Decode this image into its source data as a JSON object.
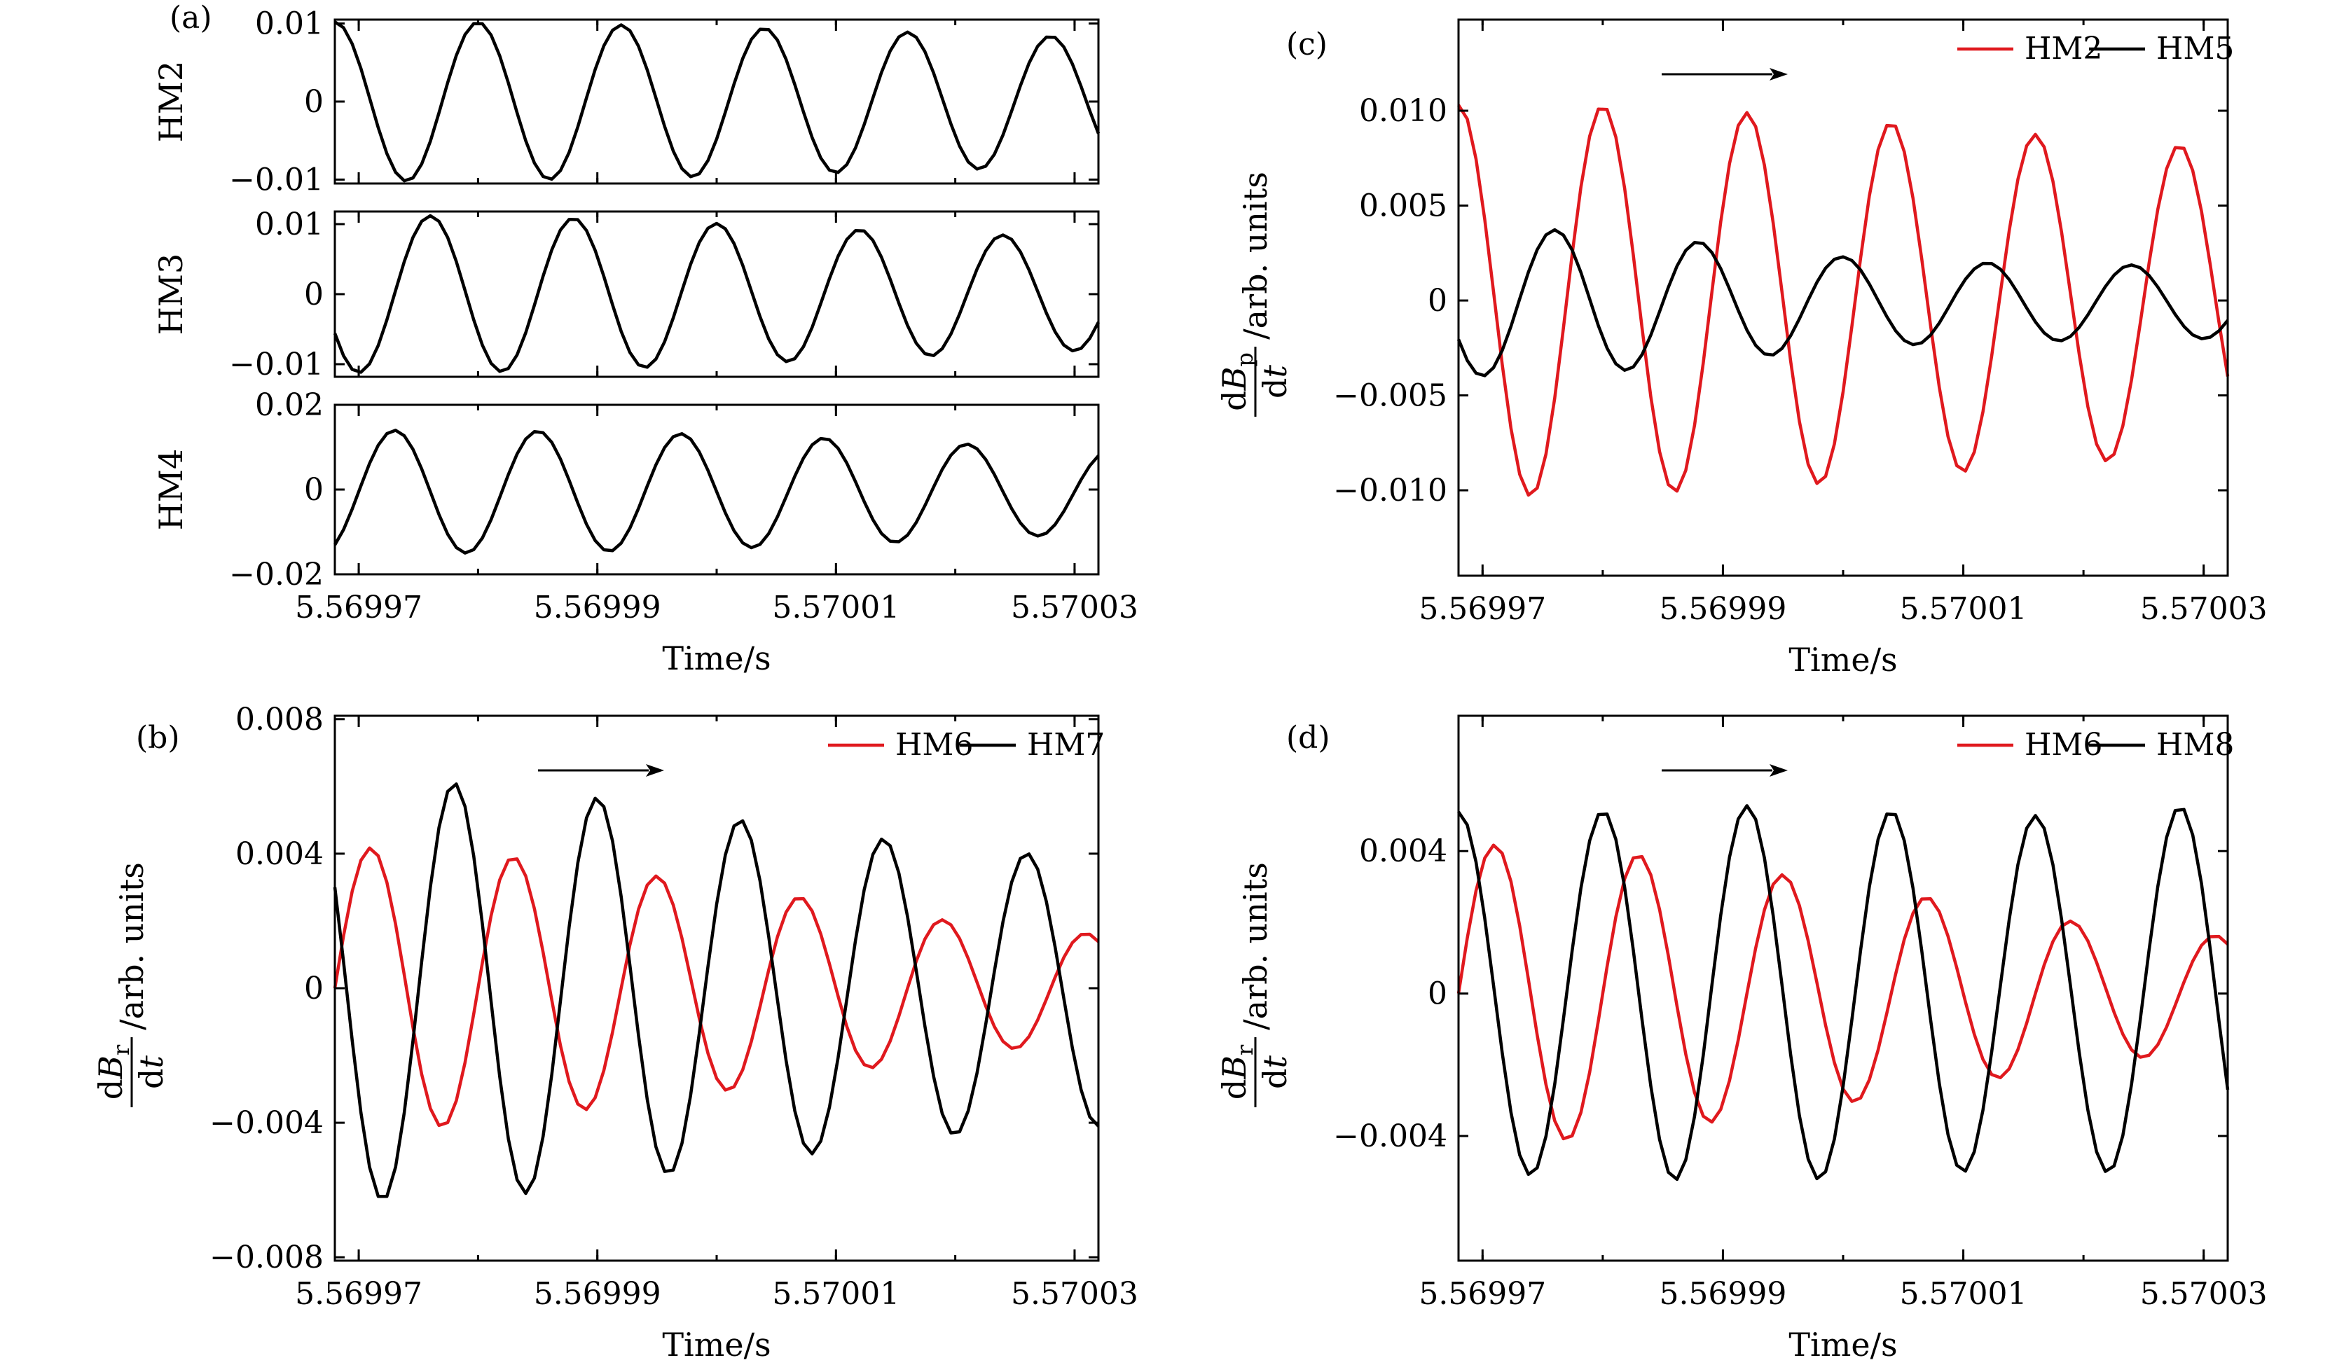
{
  "colors": {
    "red": "#e0191e",
    "black": "#000000"
  },
  "chart_data": [
    {
      "type": "line",
      "id": "a",
      "panel_label": "(a)",
      "xlabel": "Time/s",
      "x_ticks": [
        "5.56997",
        "5.56999",
        "5.57001",
        "5.57003"
      ],
      "x_tick_values": [
        5.56997,
        5.56999,
        5.57001,
        5.57003
      ],
      "xlim": [
        5.569968,
        5.570032
      ],
      "subplots": [
        {
          "ylabel": "HM2",
          "ylim": [
            -0.0105,
            0.0105
          ],
          "y_ticks": [
            "0.01",
            "0",
            "−0.01"
          ],
          "y_tick_values": [
            0.01,
            0,
            -0.01
          ],
          "series": [
            {
              "color": "black",
              "amplitude": [
                0.0102,
                0.0102,
                0.0099,
                0.0096,
                0.0091,
                0.0087,
                0.0082
              ],
              "period": 1.2e-05,
              "phase": 5.56998,
              "offset": 0
            }
          ]
        },
        {
          "ylabel": "HM3",
          "ylim": [
            -0.0118,
            0.0118
          ],
          "y_ticks": [
            "0.01",
            "0",
            "−0.01"
          ],
          "y_tick_values": [
            0.01,
            0,
            -0.01
          ],
          "series": [
            {
              "color": "black",
              "amplitude": [
                0.0112,
                0.0112,
                0.0108,
                0.0101,
                0.0093,
                0.0086,
                0.008
              ],
              "period": 1.2e-05,
              "phase": 5.569976,
              "offset": 0
            }
          ]
        },
        {
          "ylabel": "HM4",
          "ylim": [
            -0.02,
            0.02
          ],
          "y_ticks": [
            "0.02",
            "0",
            "−0.02"
          ],
          "y_tick_values": [
            0.02,
            0,
            -0.02
          ],
          "series": [
            {
              "color": "black",
              "amplitude": [
                0.0145,
                0.0145,
                0.0142,
                0.0135,
                0.0125,
                0.0112,
                0.0098
              ],
              "period": 1.2e-05,
              "phase": 5.569973,
              "offset": -0.0005
            }
          ]
        }
      ]
    },
    {
      "type": "line",
      "id": "b",
      "panel_label": "(b)",
      "xlabel": "Time/s",
      "ylabel": "dB_r/dt/arb. units",
      "x_ticks": [
        "5.56997",
        "5.56999",
        "5.57001",
        "5.57003"
      ],
      "x_tick_values": [
        5.56997,
        5.56999,
        5.57001,
        5.57003
      ],
      "xlim": [
        5.569968,
        5.570032
      ],
      "ylim": [
        -0.0081,
        0.0081
      ],
      "y_ticks": [
        "0.008",
        "0.004",
        "0",
        "−0.004",
        "−0.008"
      ],
      "y_tick_values": [
        0.008,
        0.004,
        0,
        -0.004,
        -0.008
      ],
      "legend": [
        "HM6",
        "HM7"
      ],
      "series": [
        {
          "name": "HM6",
          "color": "red",
          "amplitude": [
            0.0042,
            0.0041,
            0.0036,
            0.0031,
            0.0025,
            0.0019,
            0.0016
          ],
          "period": 1.2e-05,
          "phase": 5.569971,
          "offset": 0.0
        },
        {
          "name": "HM7",
          "color": "black",
          "amplitude": [
            0.0062,
            0.0062,
            0.0058,
            0.0052,
            0.0047,
            0.0042,
            0.004
          ],
          "period": 1.2e-05,
          "phase": 5.569978,
          "offset": -0.0001
        }
      ]
    },
    {
      "type": "line",
      "id": "c",
      "panel_label": "(c)",
      "xlabel": "Time/s",
      "ylabel": "dB_p/dt/arb. units",
      "x_ticks": [
        "5.56997",
        "5.56999",
        "5.57001",
        "5.57003"
      ],
      "x_tick_values": [
        5.56997,
        5.56999,
        5.57001,
        5.57003
      ],
      "xlim": [
        5.569968,
        5.570032
      ],
      "ylim": [
        -0.0145,
        0.0148
      ],
      "y_ticks": [
        "0.010",
        "0.005",
        "0",
        "−0.005",
        "−0.010"
      ],
      "y_tick_values": [
        0.01,
        0.005,
        0,
        -0.005,
        -0.01
      ],
      "legend": [
        "HM2",
        "HM5"
      ],
      "series": [
        {
          "name": "HM2",
          "color": "red",
          "amplitude": [
            0.0103,
            0.0103,
            0.01,
            0.0096,
            0.009,
            0.0085,
            0.008
          ],
          "period": 1.2e-05,
          "phase": 5.56998,
          "offset": 0
        },
        {
          "name": "HM5",
          "color": "black",
          "amplitude": [
            0.0039,
            0.0038,
            0.0031,
            0.0024,
            0.0021,
            0.002,
            0.0019
          ],
          "period": 1.2e-05,
          "phase": 5.569976,
          "offset": -0.0001
        }
      ]
    },
    {
      "type": "line",
      "id": "d",
      "panel_label": "(d)",
      "xlabel": "Time/s",
      "ylabel": "dB_r/dt/arb. units",
      "x_ticks": [
        "5.56997",
        "5.56999",
        "5.57001",
        "5.57003"
      ],
      "x_tick_values": [
        5.56997,
        5.56999,
        5.57001,
        5.57003
      ],
      "xlim": [
        5.569968,
        5.570032
      ],
      "ylim": [
        -0.0075,
        0.0078
      ],
      "y_ticks": [
        "0.004",
        "0",
        "−0.004"
      ],
      "y_tick_values": [
        0.004,
        0,
        -0.004
      ],
      "legend": [
        "HM6",
        "HM8"
      ],
      "series": [
        {
          "name": "HM6",
          "color": "red",
          "amplitude": [
            0.0042,
            0.0041,
            0.0036,
            0.0031,
            0.0025,
            0.0019,
            0.0016
          ],
          "period": 1.2e-05,
          "phase": 5.569971,
          "offset": 0.0
        },
        {
          "name": "HM8",
          "color": "black",
          "amplitude": [
            0.0051,
            0.0051,
            0.0053,
            0.0052,
            0.005,
            0.005,
            0.0054
          ],
          "period": 1.2e-05,
          "phase": 5.56998,
          "offset": 0.0
        }
      ]
    }
  ]
}
